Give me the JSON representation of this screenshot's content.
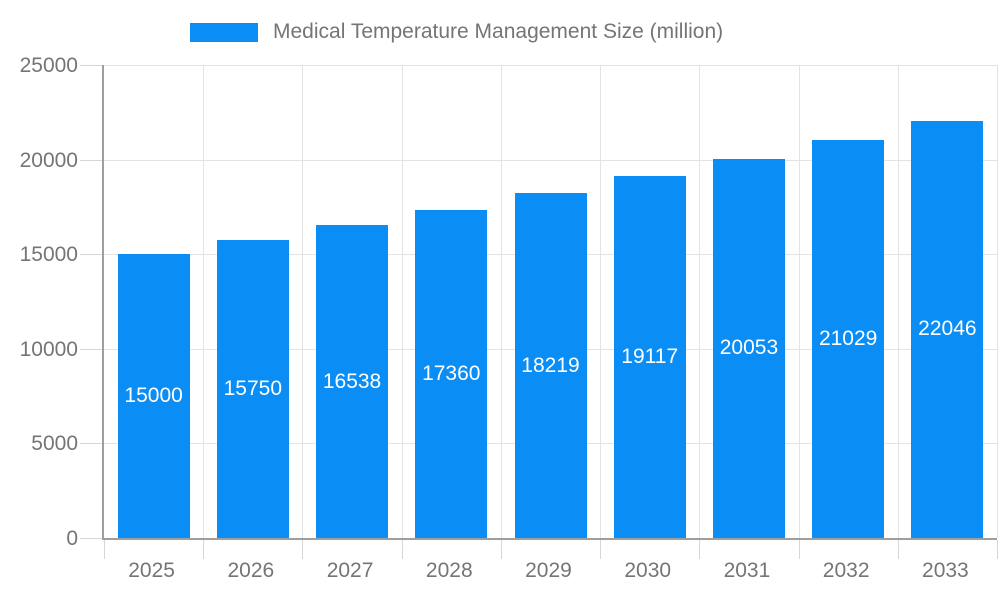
{
  "page": {
    "background": "#ffffff"
  },
  "legend": {
    "label": "Medical Temperature Management Size (million)",
    "swatch_color": "#0a8df5"
  },
  "chart_data": {
    "type": "bar",
    "title": "Medical Temperature Management Size (million)",
    "categories": [
      "2025",
      "2026",
      "2027",
      "2028",
      "2029",
      "2030",
      "2031",
      "2032",
      "2033"
    ],
    "values": [
      15000,
      15750,
      16538,
      17360,
      18219,
      19117,
      20053,
      21029,
      22046
    ],
    "bar_labels": [
      "15000",
      "15750",
      "16538",
      "17360",
      "18219",
      "19117",
      "20053",
      "21029",
      "22046"
    ],
    "xlabel": "",
    "ylabel": "",
    "ylim": [
      0,
      25000
    ],
    "yticks": [
      0,
      5000,
      10000,
      15000,
      20000,
      25000
    ],
    "grid": true,
    "legend_position": "top-center",
    "bar_color": "#0a8df5",
    "bar_label_color": "#ffffff",
    "axis_color": "#9e9e9e",
    "grid_color": "#e3e3e3",
    "tick_label_color": "#757575"
  }
}
